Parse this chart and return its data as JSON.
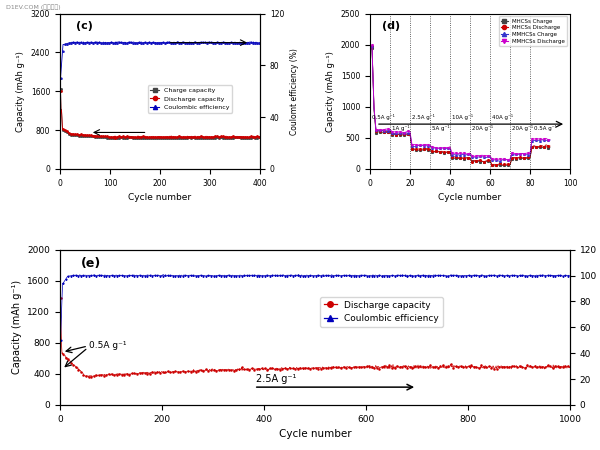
{
  "fig_width": 6.0,
  "fig_height": 4.5,
  "dpi": 100,
  "background_color": "#ffffff",
  "watermark": "D1EV.COM (第一电动)",
  "panel_c": {
    "label": "(c)",
    "xlim": [
      0,
      400
    ],
    "xticks": [
      0,
      100,
      200,
      300,
      400
    ],
    "ylim_left": [
      0,
      3200
    ],
    "yticks_left": [
      0,
      800,
      1600,
      2400,
      3200
    ],
    "ylim_right": [
      0,
      120
    ],
    "yticks_right": [
      0,
      40,
      80,
      120
    ],
    "xlabel": "Cycle number",
    "ylabel_left": "Capacity (mAh g⁻¹)",
    "ylabel_right": "Coulomt efficiency (%)",
    "charge_color": "#444444",
    "discharge_color": "#cc0000",
    "efficiency_color": "#0000bb",
    "legend_labels": [
      "Charge capacity",
      "Discharge capacity",
      "Coulombic efficiency"
    ]
  },
  "panel_d": {
    "label": "(d)",
    "xlim": [
      0,
      100
    ],
    "xticks": [
      0,
      20,
      40,
      60,
      80,
      100
    ],
    "ylim_left": [
      0,
      2500
    ],
    "yticks_left": [
      0,
      500,
      1000,
      1500,
      2000,
      2500
    ],
    "xlabel": "Cycle number",
    "ylabel_left": "Capacity (mAh g⁻¹)",
    "vlines_x": [
      10,
      20,
      30,
      40,
      50,
      60,
      70,
      80
    ],
    "MHCSs_charge_color": "#444444",
    "MHCSs_discharge_color": "#cc0000",
    "MMHCSs_charge_color": "#3333cc",
    "MMHCSs_discharge_color": "#cc00cc",
    "legend_labels": [
      "MHCSs Charge",
      "MHCSs Discharge",
      "MMHCSs Charge",
      "MMHCSs Discharge"
    ]
  },
  "panel_e": {
    "label": "(e)",
    "xlim": [
      0,
      1000
    ],
    "xticks": [
      0,
      200,
      400,
      600,
      800,
      1000
    ],
    "ylim_left": [
      0,
      2000
    ],
    "yticks_left": [
      0,
      400,
      800,
      1200,
      1600,
      2000
    ],
    "ylim_right": [
      0,
      120
    ],
    "yticks_right": [
      0,
      20,
      40,
      60,
      80,
      100,
      120
    ],
    "xlabel": "Cycle number",
    "ylabel_left": "Capacity (mAh g⁻¹)",
    "ylabel_right": "Coulombic efficiency (%)",
    "discharge_color": "#cc0000",
    "efficiency_color": "#0000bb",
    "legend_labels": [
      "Discharge capacity",
      "Coulombic efficiency"
    ]
  }
}
